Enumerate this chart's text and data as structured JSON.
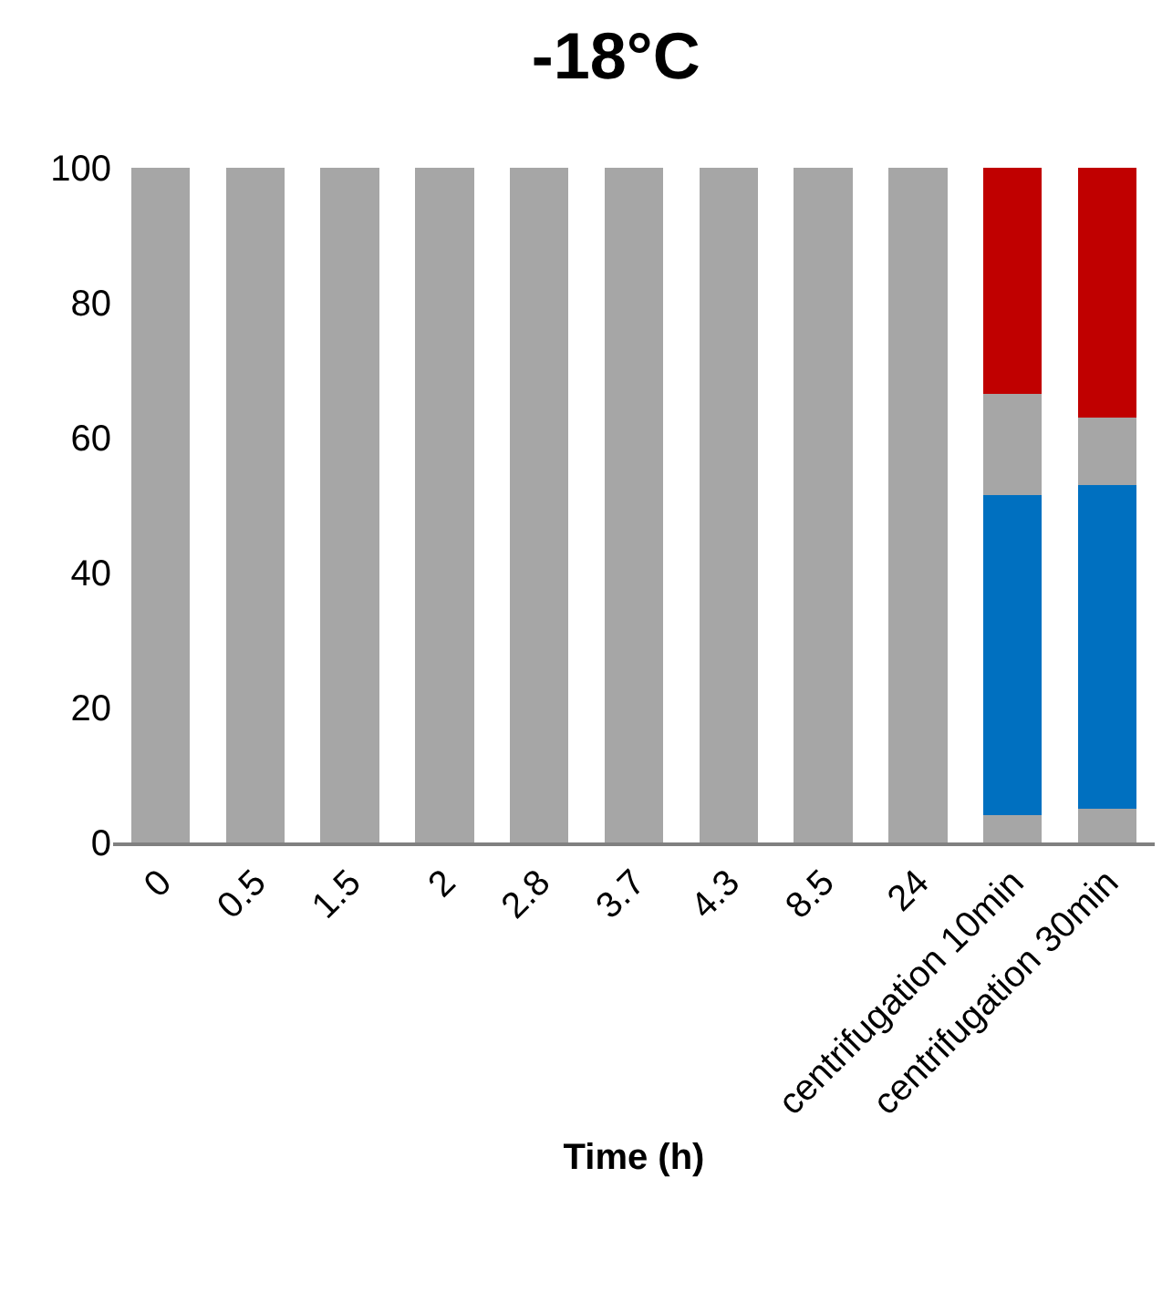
{
  "chart_data": {
    "type": "bar",
    "title": "-18°C",
    "xlabel": "Time (h)",
    "stacked": true,
    "categories": [
      "0",
      "0.5",
      "1.5",
      "2",
      "2.8",
      "3.7",
      "4.3",
      "8.5",
      "24",
      "centrifugation 10min",
      "centrifugation 30min"
    ],
    "series": [
      {
        "color": "#a6a6a6",
        "values": [
          100,
          100,
          100,
          100,
          100,
          100,
          100,
          100,
          100,
          4,
          5
        ]
      },
      {
        "color": "#0070c0",
        "values": [
          0,
          0,
          0,
          0,
          0,
          0,
          0,
          0,
          0,
          47.5,
          48
        ]
      },
      {
        "color": "#a6a6a6",
        "values": [
          0,
          0,
          0,
          0,
          0,
          0,
          0,
          0,
          0,
          15,
          10
        ]
      },
      {
        "color": "#c00000",
        "values": [
          0,
          0,
          0,
          0,
          0,
          0,
          0,
          0,
          0,
          33.5,
          37
        ]
      }
    ],
    "ylim": [
      0,
      100
    ],
    "yticks": [
      0,
      20,
      40,
      60,
      80,
      100
    ],
    "grid": false,
    "legend": false
  }
}
